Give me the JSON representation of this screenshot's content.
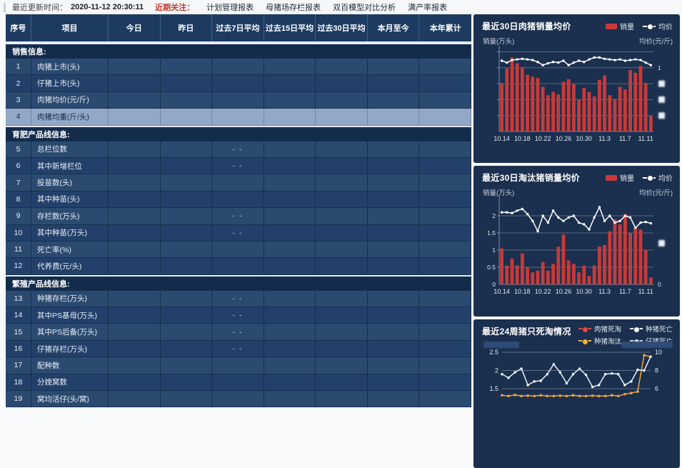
{
  "topbar": {
    "update_label": "最近更新时间：",
    "update_time": "2020-11-12 20:30:11",
    "focus_label": "近期关注：",
    "links": [
      "计划管理报表",
      "母猪场存栏报表",
      "双百模型对比分析",
      "满产率报表"
    ]
  },
  "table": {
    "columns": [
      "序号",
      "项目",
      "今日",
      "昨日",
      "过去7日平均",
      "过去15日平均",
      "过去30日平均",
      "本月至今",
      "本年累计"
    ],
    "values_redacted": true,
    "dash_value": "- -",
    "sections": [
      {
        "title": "销售信息:",
        "rows": [
          {
            "no": "1",
            "label": "肉猪上市(头)"
          },
          {
            "no": "2",
            "label": "仔猪上市(头)"
          },
          {
            "no": "3",
            "label": "肉猪均价(元/斤)"
          },
          {
            "no": "4",
            "label": "肉猪均重(斤/头)",
            "highlight": true
          }
        ]
      },
      {
        "title": "育肥产品线信息:",
        "rows": [
          {
            "no": "5",
            "label": "总栏位数",
            "dashes": [
              2
            ]
          },
          {
            "no": "6",
            "label": "其中新增栏位",
            "dashes": [
              2
            ]
          },
          {
            "no": "7",
            "label": "投苗数(头)"
          },
          {
            "no": "8",
            "label": "其中种苗(头)"
          },
          {
            "no": "9",
            "label": "存栏数(万头)",
            "dashes": [
              2
            ]
          },
          {
            "no": "10",
            "label": "其中种苗(万头)",
            "dashes": [
              2
            ]
          },
          {
            "no": "11",
            "label": "死亡率(%)"
          },
          {
            "no": "12",
            "label": "代养费(元/头)"
          }
        ]
      },
      {
        "title": "繁殖产品线信息:",
        "rows": [
          {
            "no": "13",
            "label": "种猪存栏(万头)",
            "dashes": [
              2
            ]
          },
          {
            "no": "14",
            "label": "其中PS基母(万头)",
            "dashes": [
              2
            ]
          },
          {
            "no": "15",
            "label": "其中PS后备(万头)",
            "dashes": [
              2
            ]
          },
          {
            "no": "16",
            "label": "仔猪存栏(万头)",
            "dashes": [
              2
            ]
          },
          {
            "no": "17",
            "label": "配种数"
          },
          {
            "no": "18",
            "label": "分娩窝数"
          },
          {
            "no": "19",
            "label": "窝均活仔(头/窝)"
          }
        ]
      }
    ]
  },
  "chart_data": [
    {
      "id": "pork-sales",
      "type": "bar",
      "title": "最近30日肉猪销量均价",
      "left_axis_label": "销量(万头)",
      "right_axis_label": "均价(元/斤)",
      "legend": [
        {
          "label": "销量",
          "type": "bar",
          "color": "#c93a38"
        },
        {
          "label": "均价",
          "type": "line",
          "color": "#ffffff"
        }
      ],
      "x_tick_labels": [
        "10.14",
        "10.18",
        "10.22",
        "10.26",
        "10.30",
        "11.3",
        "11.7",
        "11.11"
      ],
      "x_tick_every": 4,
      "note": "y-axis tick values redacted in source; bar/line values are relative estimates",
      "ylim": [
        0,
        1.3
      ],
      "gridlines": [
        0.25,
        0.5,
        0.75,
        1.0,
        1.25
      ],
      "left_ticks": [],
      "right_ticks": [
        {
          "v": 1.0,
          "label": "1"
        },
        {
          "v": 0.75,
          "redacted": true
        },
        {
          "v": 0.5,
          "redacted": true
        },
        {
          "v": 0.25,
          "redacted": true
        }
      ],
      "bars": {
        "name": "销量",
        "values": [
          0.76,
          0.99,
          1.16,
          1.07,
          1.01,
          0.89,
          0.86,
          0.84,
          0.7,
          0.57,
          0.62,
          0.58,
          0.78,
          0.82,
          0.74,
          0.5,
          0.68,
          0.62,
          0.55,
          0.81,
          0.88,
          0.57,
          0.51,
          0.7,
          0.66,
          0.96,
          0.92,
          1.03,
          0.76,
          0.24
        ]
      },
      "line": {
        "name": "均价",
        "values": [
          1.11,
          1.08,
          1.12,
          1.13,
          1.14,
          1.13,
          1.12,
          1.09,
          1.04,
          1.07,
          1.09,
          1.08,
          1.11,
          1.04,
          1.08,
          1.11,
          1.09,
          1.13,
          1.16,
          1.16,
          1.14,
          1.13,
          1.12,
          1.13,
          1.11,
          1.12,
          1.13,
          1.12,
          1.08,
          1.04
        ]
      }
    },
    {
      "id": "cull-sales",
      "type": "bar",
      "title": "最近30日淘汰猪销量均价",
      "left_axis_label": "销量(万头)",
      "right_axis_label": "均价(元/斤)",
      "legend": [
        {
          "label": "销量",
          "type": "bar",
          "color": "#c93a38"
        },
        {
          "label": "均价",
          "type": "line",
          "color": "#ffffff"
        }
      ],
      "x_tick_labels": [
        "10.14",
        "10.18",
        "10.22",
        "10.26",
        "10.30",
        "11.3",
        "11.7",
        "11.11"
      ],
      "x_tick_every": 4,
      "ylim": [
        0,
        2.5
      ],
      "gridlines": [
        0.5,
        1.0,
        1.5,
        2.0
      ],
      "left_ticks": [
        {
          "v": 2,
          "label": "2"
        },
        {
          "v": 1.5,
          "label": "1.5"
        },
        {
          "v": 1,
          "label": "1"
        },
        {
          "v": 0.5,
          "label": "0.5"
        },
        {
          "v": 0,
          "label": "0"
        }
      ],
      "right_ticks": [
        {
          "v": 1.2,
          "redacted": true
        },
        {
          "v": 0,
          "label": "0"
        }
      ],
      "bars": {
        "name": "销量",
        "values": [
          1.05,
          0.55,
          0.75,
          0.55,
          0.9,
          0.5,
          0.35,
          0.4,
          0.65,
          0.4,
          0.6,
          1.1,
          1.45,
          0.7,
          0.6,
          0.35,
          0.55,
          0.25,
          0.55,
          1.1,
          1.15,
          1.55,
          1.9,
          1.75,
          2.05,
          1.5,
          1.65,
          1.6,
          1.0,
          0.2
        ]
      },
      "line": {
        "name": "均价",
        "values": [
          2.1,
          2.1,
          2.08,
          2.15,
          2.2,
          2.05,
          1.85,
          1.55,
          2.0,
          1.8,
          2.15,
          1.95,
          1.85,
          1.95,
          2.0,
          1.8,
          1.75,
          1.6,
          1.95,
          2.25,
          1.85,
          2.0,
          1.8,
          1.85,
          2.0,
          1.95,
          1.65,
          1.8,
          1.82,
          1.78
        ]
      }
    },
    {
      "id": "death-cull",
      "type": "line",
      "title": "最近24周猪只死淘情况",
      "left_axis_label_redacted": true,
      "right_axis_label_redacted": true,
      "legend": [
        {
          "label": "肉猪死淘",
          "type": "line",
          "color": "#e04b3f"
        },
        {
          "label": "种猪死亡",
          "type": "line",
          "color": "#ffffff"
        },
        {
          "label": "种猪淘汰",
          "type": "line",
          "color": "#f3b13e"
        },
        {
          "label": "仔猪死亡",
          "type": "line",
          "color": "#cfe4f2"
        }
      ],
      "x_points": 24,
      "note": "x-axis labels and lower chart area cut off by viewport; 肉猪死淘/仔猪死亡 series not visible in crop",
      "ylim_left_visible": [
        1.5,
        2.5
      ],
      "left_ticks": [
        {
          "v": 2.5,
          "label": "2.5"
        },
        {
          "v": 2,
          "label": "2"
        },
        {
          "v": 1.5,
          "label": "1.5"
        }
      ],
      "right_ticks": [
        {
          "v": 2.5,
          "label": "10"
        },
        {
          "v": 2,
          "label": "8"
        },
        {
          "v": 1.5,
          "label": "6"
        }
      ],
      "series": [
        {
          "name": "种猪死亡",
          "color": "#e6f0f8",
          "values": [
            1.9,
            1.8,
            1.95,
            2.05,
            1.6,
            1.7,
            1.72,
            1.9,
            2.17,
            1.95,
            1.65,
            1.9,
            2.05,
            1.88,
            1.55,
            1.6,
            1.9,
            1.92,
            1.9,
            1.6,
            1.7,
            2.02,
            2.0,
            2.38
          ]
        },
        {
          "name": "种猪淘汰",
          "color": "#f2a33c",
          "values": [
            1.32,
            1.3,
            1.33,
            1.3,
            1.31,
            1.3,
            1.32,
            1.3,
            1.3,
            1.31,
            1.3,
            1.32,
            1.3,
            1.3,
            1.31,
            1.3,
            1.3,
            1.32,
            1.3,
            1.35,
            1.38,
            1.42,
            2.42,
            2.38
          ]
        },
        {
          "name": "肉猪死淘",
          "color": "#e04b3f",
          "values": []
        },
        {
          "name": "仔猪死亡",
          "color": "#cfe4f2",
          "values": []
        }
      ]
    }
  ],
  "colors": {
    "bar_red": "#c93a38",
    "panel_bg": "#1b2f4e",
    "table_header_bg": "#1d3b61",
    "row_odd": "#2b4a70",
    "row_even": "#22406a",
    "row_highlight": "#92a8c6",
    "section_bg": "#132c4c",
    "focus_red": "#c0392b"
  }
}
